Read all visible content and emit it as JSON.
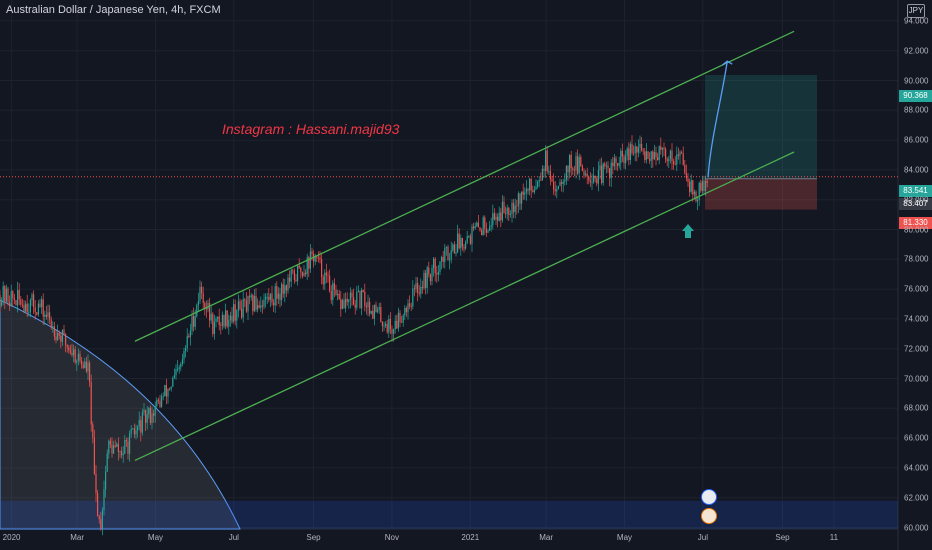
{
  "header": {
    "symbol_title": "Australian Dollar / Japanese Yen, 4h, FXCM"
  },
  "annotation": {
    "watermark": "Instagram : Hassani.majid93"
  },
  "currency_button": {
    "label": "JPY"
  },
  "price_tags": {
    "target": "90.368",
    "current": "83.541",
    "entry": "83.407",
    "hidden": "82.000",
    "stop": "81.330"
  },
  "colors": {
    "background": "#131722",
    "up_candle": "#26a69a",
    "down_candle": "#ef5350",
    "channel": "#4caf50",
    "target_zone": "#26a69a",
    "stop_zone": "#ef5350",
    "watermark": "#f23645",
    "projection_arrow": "#5b9cf6"
  },
  "chart_data": {
    "type": "candlestick",
    "title": "Australian Dollar / Japanese Yen, 4h, FXCM",
    "x_ticks": [
      "2020",
      "Mar",
      "May",
      "Jul",
      "Sep",
      "Nov",
      "2021",
      "Mar",
      "May",
      "Jul",
      "Sep",
      "11"
    ],
    "y_ticks": [
      "94.000",
      "92.000",
      "90.000",
      "88.000",
      "86.000",
      "84.000",
      "82.000",
      "80.000",
      "78.000",
      "76.000",
      "74.000",
      "72.000",
      "70.000",
      "68.000",
      "66.000",
      "64.000",
      "62.000",
      "60.000"
    ],
    "ylim": [
      59.9,
      95.0
    ],
    "close_path": [
      [
        "2020-01",
        75.6
      ],
      [
        "2020-02",
        74.8
      ],
      [
        "2020-02-20",
        72.5
      ],
      [
        "2020-03-10",
        70.5
      ],
      [
        "2020-03-15",
        62.5
      ],
      [
        "2020-03-19",
        60.0
      ],
      [
        "2020-03-25",
        65.5
      ],
      [
        "2020-04-05",
        65.0
      ],
      [
        "2020-04-20",
        67.0
      ],
      [
        "2020-05-01",
        68.0
      ],
      [
        "2020-05-20",
        70.5
      ],
      [
        "2020-06-05",
        76.0
      ],
      [
        "2020-06-15",
        73.5
      ],
      [
        "2020-07-01",
        74.5
      ],
      [
        "2020-08-01",
        75.5
      ],
      [
        "2020-08-25",
        77.5
      ],
      [
        "2020-09-01",
        78.3
      ],
      [
        "2020-09-20",
        75.0
      ],
      [
        "2020-10-10",
        75.3
      ],
      [
        "2020-11-01",
        73.3
      ],
      [
        "2020-11-20",
        76.0
      ],
      [
        "2020-12-20",
        79.0
      ],
      [
        "2021-01-15",
        80.5
      ],
      [
        "2021-02-20",
        83.0
      ],
      [
        "2021-03-01",
        84.8
      ],
      [
        "2021-03-05",
        82.5
      ],
      [
        "2021-03-20",
        84.5
      ],
      [
        "2021-04-10",
        83.5
      ],
      [
        "2021-05-10",
        85.3
      ],
      [
        "2021-06-15",
        84.8
      ],
      [
        "2021-06-25",
        82.0
      ],
      [
        "2021-07-05",
        83.5
      ]
    ],
    "channel": {
      "upper": [
        [
          "2020-04-15",
          72.5
        ],
        [
          "2021-09-10",
          93.3
        ]
      ],
      "lower": [
        [
          "2020-04-15",
          64.5
        ],
        [
          "2021-09-10",
          85.2
        ]
      ]
    },
    "long_position": {
      "entry": 83.407,
      "target": 90.368,
      "stop": 81.33,
      "current": 83.541
    },
    "projection": {
      "from": [
        "2021-07-05",
        83.5
      ],
      "to": [
        "2021-07-20",
        91.3
      ]
    }
  }
}
